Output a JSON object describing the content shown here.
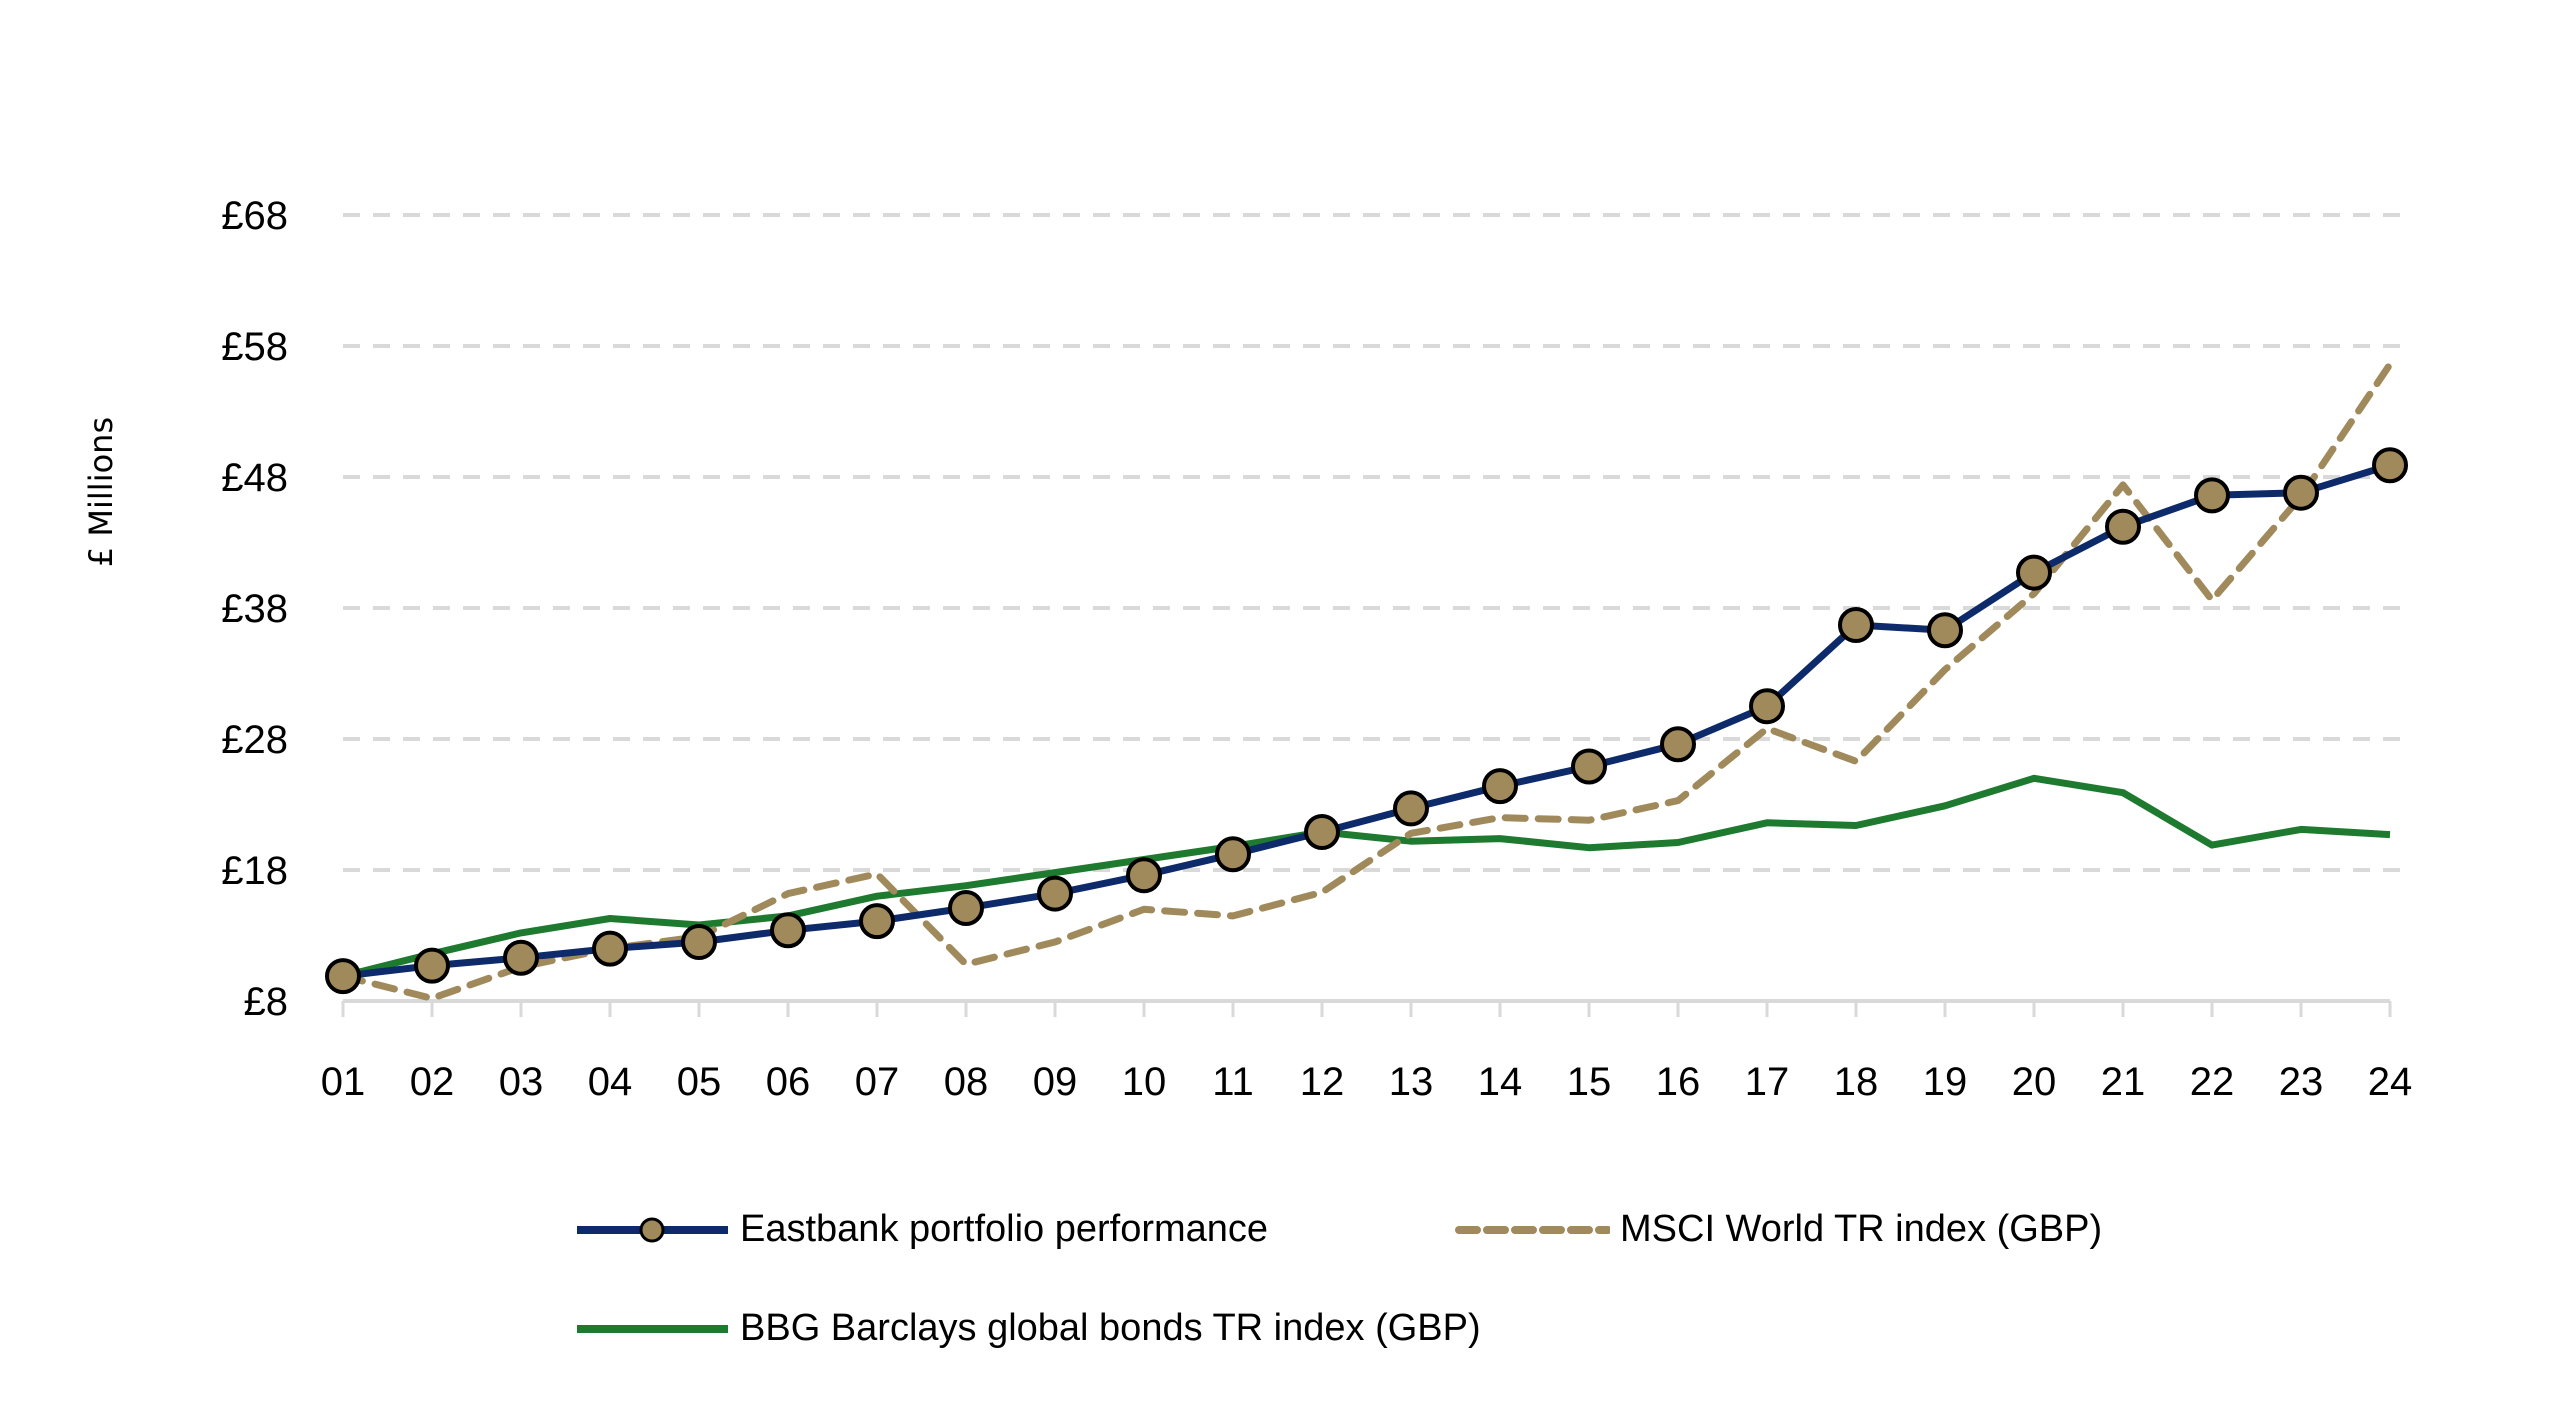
{
  "chart_data": {
    "type": "line",
    "title": "",
    "xlabel": "",
    "ylabel": "£ Millions",
    "ylim": [
      8,
      68
    ],
    "yticks": [
      8,
      18,
      28,
      38,
      48,
      58,
      68
    ],
    "ytick_labels": [
      "£8",
      "£18",
      "£28",
      "£38",
      "£48",
      "£58",
      "£68"
    ],
    "grid": "horizontal dashed",
    "legend_position": "bottom",
    "x": [
      "01",
      "02",
      "03",
      "04",
      "05",
      "06",
      "07",
      "08",
      "09",
      "10",
      "11",
      "12",
      "13",
      "14",
      "15",
      "16",
      "17",
      "18",
      "19",
      "20",
      "21",
      "22",
      "23",
      "24"
    ],
    "series": [
      {
        "name": "Eastbank portfolio performance",
        "style": "solid-with-markers",
        "color": "#0d2a6b",
        "marker_color": "#a08a5c",
        "values": [
          9.9,
          10.7,
          11.3,
          12.0,
          12.5,
          13.4,
          14.1,
          15.1,
          16.2,
          17.6,
          19.2,
          20.9,
          22.7,
          24.4,
          25.9,
          27.6,
          30.5,
          36.7,
          36.3,
          40.7,
          44.2,
          46.6,
          46.8,
          48.9
        ]
      },
      {
        "name": "MSCI World TR index (GBP)",
        "style": "dashed",
        "color": "#a08a5c",
        "values": [
          9.9,
          8.2,
          10.6,
          12.0,
          12.9,
          16.2,
          17.7,
          10.8,
          12.5,
          15.0,
          14.5,
          16.3,
          20.8,
          22.0,
          21.8,
          23.3,
          28.8,
          26.3,
          33.3,
          39.1,
          47.4,
          38.6,
          46.5,
          56.6
        ]
      },
      {
        "name": "BBG Barclays global bonds TR index (GBP)",
        "style": "solid",
        "color": "#1e7a2e",
        "values": [
          9.9,
          11.6,
          13.2,
          14.3,
          13.8,
          14.5,
          16.0,
          16.8,
          17.8,
          18.8,
          19.8,
          20.9,
          20.2,
          20.4,
          19.7,
          20.1,
          21.6,
          21.4,
          22.9,
          25.0,
          23.9,
          19.9,
          21.1,
          20.7
        ]
      }
    ]
  }
}
